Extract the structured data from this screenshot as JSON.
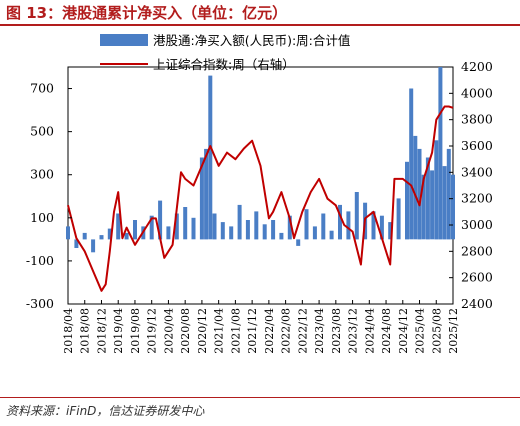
{
  "figure": {
    "title": "图 13：港股通累计净买入（单位：亿元）",
    "source": "资料来源：iFinD，信达证券研发中心"
  },
  "colors": {
    "bars": "#4a7ec5",
    "line": "#c00000",
    "title": "#b21d1d"
  },
  "chart_data": {
    "type": "bar",
    "xlim": [
      "2018-04",
      "2025-12"
    ],
    "x_tick_labels": [
      "2018/04",
      "2018/08",
      "2018/12",
      "2019/04",
      "2019/08",
      "2019/12",
      "2020/04",
      "2020/08",
      "2020/12",
      "2021/04",
      "2021/08",
      "2021/12",
      "2022/04",
      "2022/08",
      "2022/12",
      "2023/04",
      "2023/08",
      "2023/12",
      "2024/04",
      "2024/08",
      "2024/12",
      "2025/04",
      "2025/08",
      "2025/12"
    ],
    "y_left": {
      "ticks": [
        -300,
        -100,
        100,
        300,
        500,
        700
      ],
      "ylim": [
        -300,
        800
      ]
    },
    "y_right": {
      "ticks": [
        2400,
        2600,
        2800,
        3000,
        3200,
        3400,
        3600,
        3800,
        4000,
        4200
      ],
      "ylim": [
        2400,
        4200
      ]
    },
    "legend_position": "top",
    "grid": false,
    "series": [
      {
        "name": "港股通:净买入额(人民币):周:合计值",
        "type": "bar",
        "axis": "left",
        "x": [
          "2018-04",
          "2018-06",
          "2018-08",
          "2018-10",
          "2018-12",
          "2019-02",
          "2019-04",
          "2019-06",
          "2019-08",
          "2019-10",
          "2019-12",
          "2020-02",
          "2020-04",
          "2020-06",
          "2020-08",
          "2020-10",
          "2020-12",
          "2021-01",
          "2021-02",
          "2021-03",
          "2021-05",
          "2021-07",
          "2021-09",
          "2021-11",
          "2022-01",
          "2022-03",
          "2022-05",
          "2022-07",
          "2022-09",
          "2022-11",
          "2023-01",
          "2023-03",
          "2023-05",
          "2023-07",
          "2023-09",
          "2023-11",
          "2024-01",
          "2024-03",
          "2024-05",
          "2024-07",
          "2024-09",
          "2024-11",
          "2025-01",
          "2025-02",
          "2025-03",
          "2025-04",
          "2025-05",
          "2025-06",
          "2025-07",
          "2025-08",
          "2025-09",
          "2025-10",
          "2025-11",
          "2025-12"
        ],
        "values": [
          60,
          -40,
          30,
          -60,
          20,
          50,
          120,
          30,
          90,
          60,
          110,
          180,
          60,
          120,
          150,
          100,
          380,
          420,
          760,
          120,
          80,
          60,
          160,
          90,
          130,
          70,
          90,
          30,
          110,
          -30,
          140,
          60,
          120,
          40,
          160,
          130,
          220,
          170,
          130,
          110,
          80,
          190,
          360,
          700,
          480,
          420,
          300,
          380,
          320,
          460,
          800,
          340,
          420,
          300
        ]
      },
      {
        "name": "上证综合指数:周（右轴）",
        "type": "line",
        "axis": "right",
        "x": [
          "2018-04",
          "2018-06",
          "2018-08",
          "2018-10",
          "2018-12",
          "2019-01",
          "2019-02",
          "2019-03",
          "2019-04",
          "2019-05",
          "2019-06",
          "2019-08",
          "2019-10",
          "2019-12",
          "2020-01",
          "2020-03",
          "2020-05",
          "2020-07",
          "2020-08",
          "2020-10",
          "2020-12",
          "2021-02",
          "2021-04",
          "2021-06",
          "2021-08",
          "2021-10",
          "2021-12",
          "2022-02",
          "2022-04",
          "2022-05",
          "2022-07",
          "2022-09",
          "2022-10",
          "2022-12",
          "2023-02",
          "2023-04",
          "2023-06",
          "2023-08",
          "2023-10",
          "2023-12",
          "2024-02",
          "2024-03",
          "2024-05",
          "2024-07",
          "2024-09",
          "2024-10",
          "2024-12",
          "2025-02",
          "2025-04",
          "2025-05",
          "2025-07",
          "2025-08",
          "2025-09",
          "2025-10",
          "2025-11",
          "2025-12"
        ],
        "values": [
          3150,
          2900,
          2800,
          2650,
          2500,
          2550,
          2800,
          3100,
          3250,
          2900,
          2980,
          2850,
          2950,
          3050,
          3050,
          2750,
          2850,
          3400,
          3350,
          3300,
          3450,
          3600,
          3450,
          3550,
          3500,
          3580,
          3640,
          3450,
          3050,
          3100,
          3250,
          3050,
          2900,
          3100,
          3250,
          3350,
          3200,
          3150,
          3000,
          2950,
          2700,
          3050,
          3100,
          2900,
          2700,
          3350,
          3350,
          3300,
          3150,
          3350,
          3550,
          3800,
          3850,
          3900,
          3900,
          3890
        ]
      }
    ]
  }
}
